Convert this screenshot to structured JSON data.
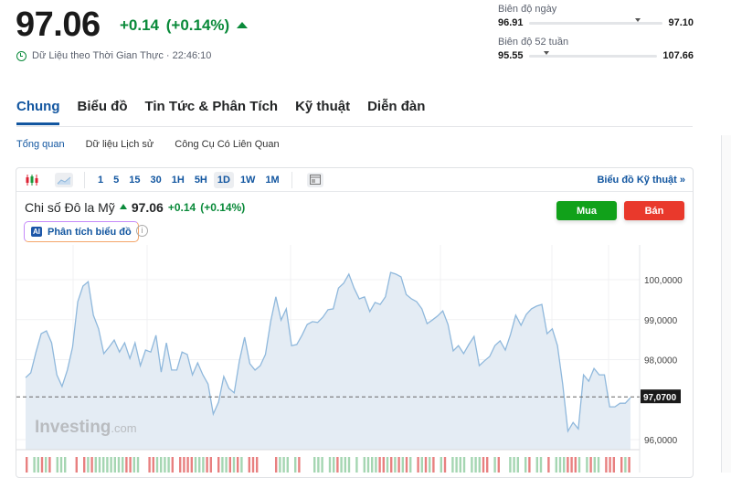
{
  "quote": {
    "price": "97.06",
    "change": "+0.14 (+0.14%)",
    "direction": "up",
    "realtime_label": "Dữ Liệu theo Thời Gian Thực · 22:46:10"
  },
  "ranges": {
    "day": {
      "label": "Biên độ ngày",
      "low": "96.91",
      "high": "97.10",
      "position": 0.79
    },
    "week52": {
      "label": "Biên độ 52 tuần",
      "low": "95.55",
      "high": "107.66",
      "position": 0.12
    }
  },
  "tabs": [
    {
      "label": "Chung",
      "active": true
    },
    {
      "label": "Biểu đồ"
    },
    {
      "label": "Tin Tức & Phân Tích"
    },
    {
      "label": "Kỹ thuật"
    },
    {
      "label": "Diễn đàn"
    }
  ],
  "subnav": [
    {
      "label": "Tổng quan",
      "active": true
    },
    {
      "label": "Dữ liệu Lịch sử"
    },
    {
      "label": "Công Cụ Có Liên Quan"
    }
  ],
  "toolbar": {
    "timeframes": [
      "1",
      "5",
      "15",
      "30",
      "1H",
      "5H",
      "1D",
      "1W",
      "1M"
    ],
    "selected": "1D",
    "technical_link": "Biểu đồ Kỹ thuật »"
  },
  "instrument": {
    "name": "Chi số Đô la Mỹ",
    "price": "97.06",
    "change": "+0.14",
    "change_pct": "(+0.14%)"
  },
  "ai_button": "Phân tích biểu đồ",
  "info_icon": "i",
  "buy_label": "Mua",
  "sell_label": "Bán",
  "watermark": {
    "brand": "Investing",
    "suffix": ".com"
  },
  "colors": {
    "accent": "#1256a0",
    "up": "#0a8a3a",
    "buy": "#11a11a",
    "sell": "#e9392c",
    "line": "#8fb8dc",
    "fill": "#e4ecf4"
  },
  "chart_data": {
    "type": "area",
    "ylim": [
      95.7,
      100.9
    ],
    "yticks": [
      "100,0000",
      "99,0000",
      "98,0000",
      "96,0000"
    ],
    "ytick_values": [
      100,
      99,
      98,
      96
    ],
    "last_value": 97.07,
    "last_label": "97,0700",
    "grid": true,
    "values": [
      97.55,
      97.67,
      98.19,
      98.65,
      98.72,
      98.42,
      97.62,
      97.33,
      97.74,
      98.31,
      99.45,
      99.84,
      99.95,
      99.11,
      98.77,
      98.15,
      98.31,
      98.49,
      98.19,
      98.42,
      98.03,
      98.42,
      97.85,
      98.24,
      98.19,
      98.61,
      97.69,
      98.42,
      97.74,
      97.74,
      98.19,
      98.13,
      97.62,
      97.92,
      97.62,
      97.39,
      96.64,
      96.94,
      97.58,
      97.28,
      97.17,
      97.97,
      98.56,
      97.9,
      97.74,
      97.85,
      98.13,
      98.95,
      99.57,
      98.99,
      99.27,
      98.35,
      98.38,
      98.61,
      98.88,
      98.95,
      98.93,
      99.06,
      99.25,
      99.27,
      99.79,
      99.91,
      100.14,
      99.79,
      99.52,
      99.57,
      99.2,
      99.43,
      99.38,
      99.57,
      100.18,
      100.14,
      100.07,
      99.63,
      99.52,
      99.45,
      99.27,
      98.9,
      98.99,
      99.09,
      99.22,
      98.88,
      98.22,
      98.35,
      98.15,
      98.38,
      98.58,
      97.85,
      97.97,
      98.08,
      98.35,
      98.47,
      98.24,
      98.63,
      99.11,
      98.86,
      99.13,
      99.27,
      99.34,
      99.38,
      98.65,
      98.77,
      98.35,
      97.39,
      96.21,
      96.43,
      96.27,
      97.62,
      97.46,
      97.78,
      97.62,
      97.62,
      96.82,
      96.82,
      96.91,
      96.91,
      97.05
    ]
  }
}
